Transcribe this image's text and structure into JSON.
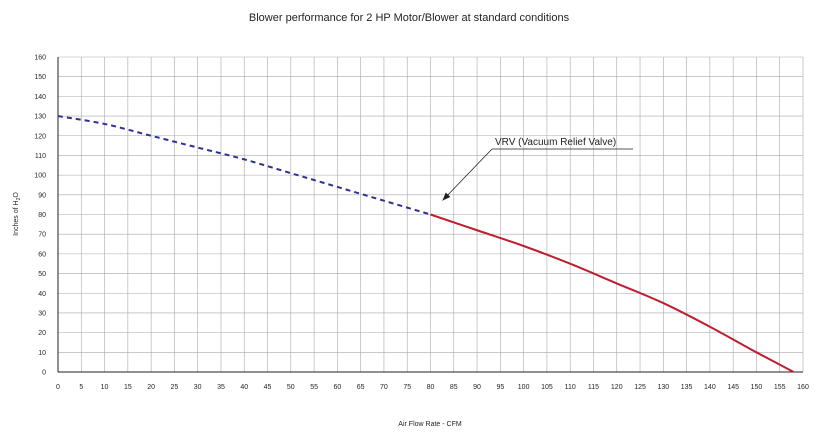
{
  "chart_data": {
    "type": "line",
    "title": "Blower performance for 2 HP Motor/Blower at standard conditions",
    "xlabel": "Air Flow Rate - CFM",
    "ylabel": "Inches of H",
    "ylabel_sub": "2",
    "ylabel_end": "O",
    "xlim": [
      0,
      160
    ],
    "ylim": [
      0,
      160
    ],
    "xticks": [
      0,
      5,
      10,
      15,
      20,
      25,
      30,
      35,
      40,
      45,
      50,
      55,
      60,
      65,
      70,
      75,
      80,
      85,
      90,
      95,
      100,
      105,
      110,
      115,
      120,
      125,
      130,
      135,
      140,
      145,
      150,
      155,
      160
    ],
    "yticks": [
      0,
      10,
      20,
      30,
      40,
      50,
      60,
      70,
      80,
      90,
      100,
      110,
      120,
      130,
      140,
      150,
      160
    ],
    "grid": true,
    "series": [
      {
        "style": "dashed",
        "color": "#2e3192",
        "x": [
          0,
          10,
          20,
          30,
          40,
          50,
          60,
          70,
          80
        ],
        "y": [
          130,
          126,
          120,
          114,
          108,
          101,
          94,
          87,
          80
        ]
      },
      {
        "style": "solid",
        "color": "#be1e2d",
        "x": [
          80,
          90,
          100,
          110,
          120,
          130,
          140,
          150,
          158
        ],
        "y": [
          80,
          72,
          64,
          55,
          45,
          35,
          23,
          10,
          0
        ]
      }
    ],
    "annotations": [
      {
        "text": "VRV (Vacuum Relief Valve)",
        "x": 80,
        "y": 80
      }
    ]
  }
}
